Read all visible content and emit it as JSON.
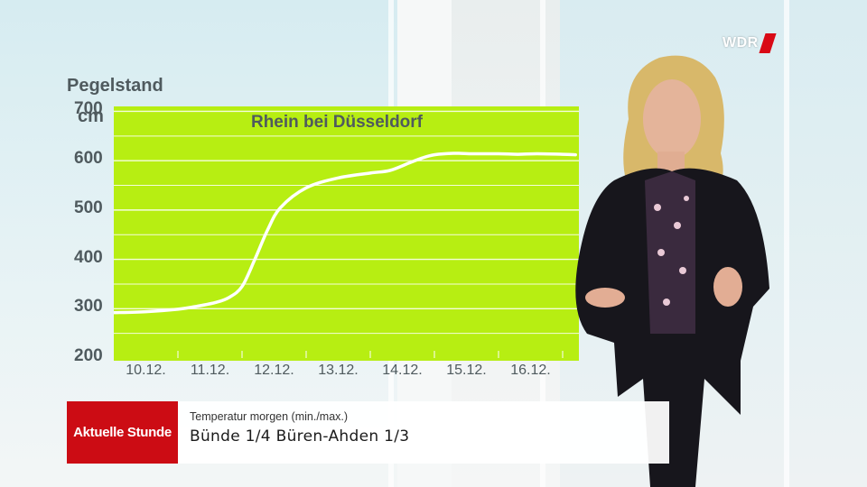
{
  "broadcaster": {
    "logo_text": "WDR"
  },
  "chart_data": {
    "type": "line",
    "title": "Rhein bei Düsseldorf",
    "ylabel": "Pegelstand",
    "yunit": "cm",
    "ylim": [
      200,
      710
    ],
    "yticks": [
      200,
      300,
      400,
      500,
      600,
      700
    ],
    "grid": true,
    "categories": [
      "10.12.",
      "11.12.",
      "12.12.",
      "13.12.",
      "14.12.",
      "15.12.",
      "16.12."
    ],
    "series": [
      {
        "x": [
          0,
          0.5,
          1,
          1.3,
          1.6,
          1.8,
          2,
          2.2,
          2.4,
          2.6,
          3,
          3.5,
          4,
          4.3,
          4.6,
          4.8,
          5,
          5.3,
          5.6,
          6,
          6.3,
          6.6,
          7,
          7.2
        ],
        "values": [
          292,
          294,
          299,
          305,
          313,
          323,
          345,
          400,
          460,
          505,
          545,
          565,
          575,
          580,
          595,
          605,
          612,
          615,
          614,
          614,
          613,
          614,
          613,
          612
        ]
      }
    ],
    "colors": {
      "background": "#b7ee12",
      "line": "#ffffff",
      "grid": "#ffffff"
    }
  },
  "lower_third": {
    "brand": "Aktuelle Stunde",
    "subtitle": "Temperatur morgen (min./max.)",
    "main": "Bünde 1/4   Büren-Ahden 1/3",
    "colors": {
      "brand_bg": "#cc0c14",
      "bar_bg": "#ffffff"
    }
  }
}
